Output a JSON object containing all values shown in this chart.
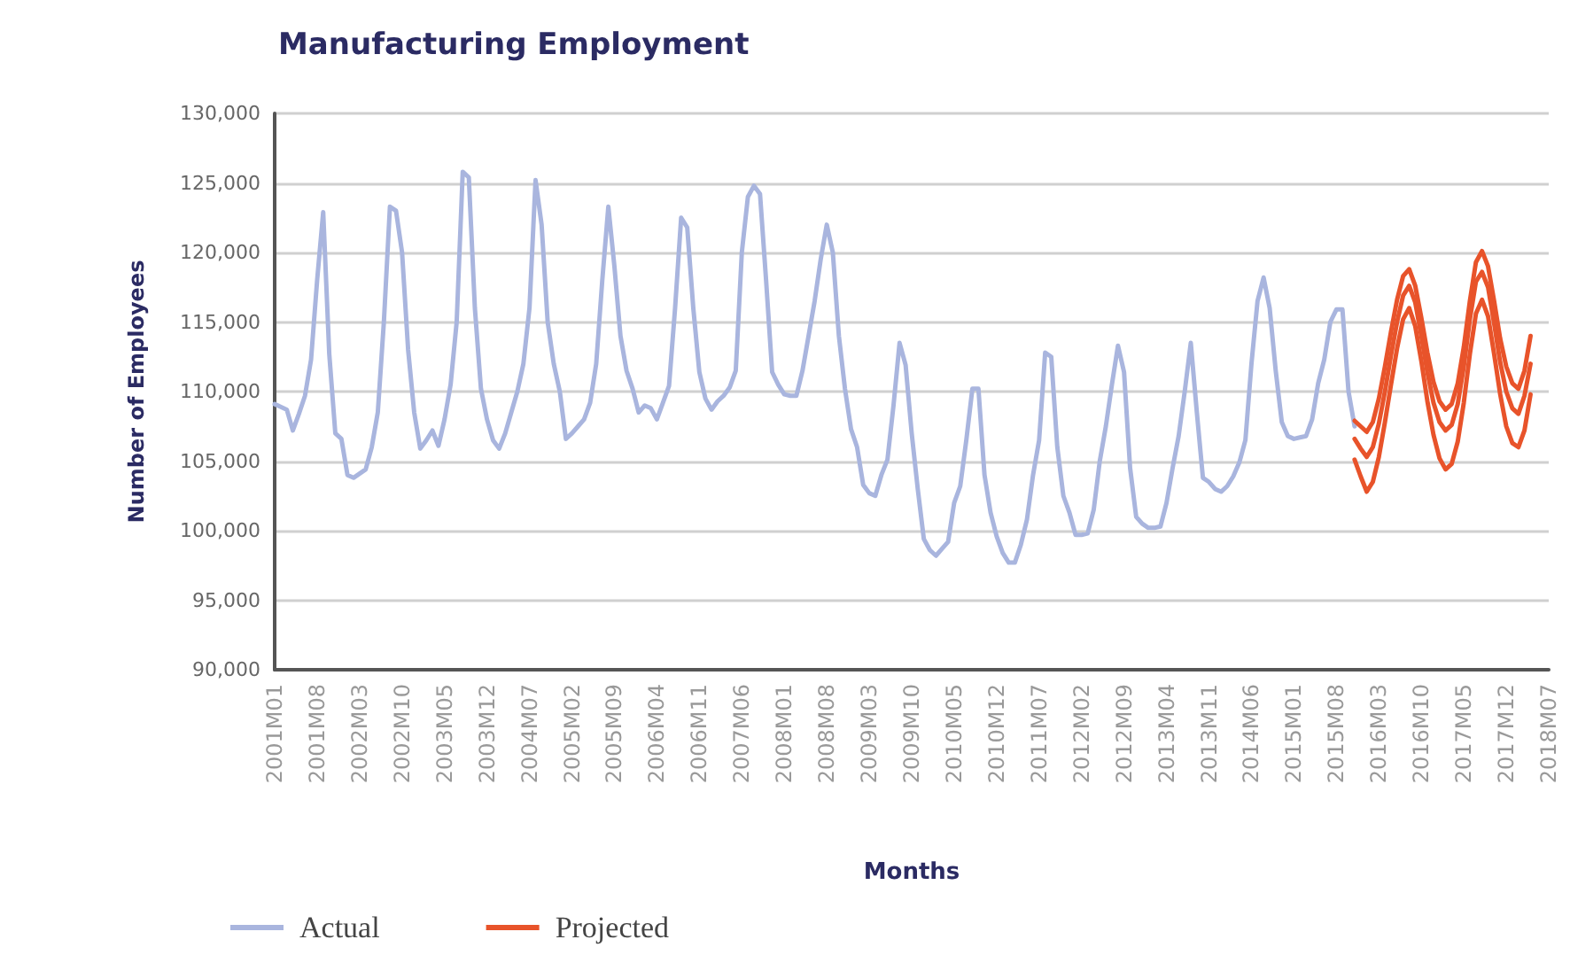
{
  "chart_data": {
    "type": "line",
    "title": "Manufacturing Employment",
    "xlabel": "Months",
    "ylabel": "Number of Employees",
    "categories": [
      "2001M01",
      null,
      null,
      null,
      null,
      null,
      null,
      "2001M08",
      null,
      null,
      null,
      null,
      null,
      null,
      "2002M03",
      null,
      null,
      null,
      null,
      null,
      null,
      "2002M10",
      null,
      null,
      null,
      null,
      null,
      null,
      "2003M05",
      null,
      null,
      null,
      null,
      null,
      null,
      "2003M12",
      null,
      null,
      null,
      null,
      null,
      null,
      "2004M07",
      null,
      null,
      null,
      null,
      null,
      null,
      "2005M02",
      null,
      null,
      null,
      null,
      null,
      null,
      "2005M09",
      null,
      null,
      null,
      null,
      null,
      null,
      "2006M04",
      null,
      null,
      null,
      null,
      null,
      null,
      "2006M11",
      null,
      null,
      null,
      null,
      null,
      null,
      "2007M06",
      null,
      null,
      null,
      null,
      null,
      null,
      "2008M01",
      null,
      null,
      null,
      null,
      null,
      null,
      "2008M08",
      null,
      null,
      null,
      null,
      null,
      null,
      "2009M03",
      null,
      null,
      null,
      null,
      null,
      null,
      "2009M10",
      null,
      null,
      null,
      null,
      null,
      null,
      "2010M05",
      null,
      null,
      null,
      null,
      null,
      null,
      "2010M12",
      null,
      null,
      null,
      null,
      null,
      null,
      "2011M07",
      null,
      null,
      null,
      null,
      null,
      null,
      "2012M02",
      null,
      null,
      null,
      null,
      null,
      null,
      "2012M09",
      null,
      null,
      null,
      null,
      null,
      null,
      "2013M04",
      null,
      null,
      null,
      null,
      null,
      null,
      "2013M11",
      null,
      null,
      null,
      null,
      null,
      null,
      "2014M06",
      null,
      null,
      null,
      null,
      null,
      null,
      "2015M01",
      null,
      null,
      null,
      null,
      null,
      null,
      "2015M08",
      null,
      null,
      null,
      null,
      null,
      null,
      "2016M03",
      null,
      null,
      null,
      null,
      null,
      null,
      "2016M10",
      null,
      null,
      null,
      null,
      null,
      null,
      "2017M05",
      null,
      null,
      null,
      null,
      null,
      null,
      "2017M12",
      null,
      null,
      null,
      null,
      null,
      null,
      "2018M07"
    ],
    "series": [
      {
        "name": "Actual",
        "color": "#a9b5de",
        "values": [
          109100,
          108900,
          108700,
          107200,
          108400,
          109700,
          112300,
          118000,
          122900,
          112700,
          107000,
          106600,
          104000,
          103800,
          104100,
          104400,
          106000,
          108500,
          115000,
          123300,
          123000,
          120000,
          113000,
          108500,
          105900,
          106500,
          107200,
          106100,
          108000,
          110500,
          115000,
          125800,
          125400,
          116000,
          110200,
          108000,
          106500,
          105900,
          107000,
          108500,
          110000,
          112000,
          116000,
          125200,
          122000,
          115000,
          112000,
          110000,
          106600,
          107000,
          107500,
          108000,
          109200,
          112000,
          118000,
          123300,
          119000,
          114000,
          111500,
          110200,
          108500,
          109000,
          108800,
          108000,
          109200,
          110400,
          116000,
          122500,
          121800,
          116000,
          111400,
          109500,
          108700,
          109300,
          109700,
          110300,
          111500,
          120000,
          124000,
          124800,
          124200,
          118000,
          111400,
          110500,
          109800,
          109700,
          109700,
          111500,
          114000,
          116500,
          119500,
          122000,
          120000,
          114000,
          110200,
          107300,
          106000,
          103300,
          102700,
          102500,
          104000,
          105100,
          109000,
          113500,
          111900,
          107000,
          103000,
          99400,
          98600,
          98200,
          98700,
          99200,
          102000,
          103200,
          106500,
          110200,
          110200,
          104000,
          101300,
          99600,
          98400,
          97700,
          97700,
          99000,
          100800,
          104000,
          106500,
          112800,
          112500,
          106000,
          102500,
          101300,
          99700,
          99700,
          99800,
          101500,
          105000,
          107500,
          110500,
          113300,
          111400,
          104500,
          101000,
          100500,
          100200,
          100200,
          100300,
          102000,
          104500,
          106800,
          110000,
          113500,
          108500,
          103800,
          103500,
          103000,
          102800,
          103200,
          103900,
          104900,
          106500,
          112000,
          116500,
          118200,
          116000,
          111500,
          107800,
          106800,
          106600,
          106700,
          106800,
          108000,
          110600,
          112300,
          115000,
          115900,
          115900,
          110000,
          107500,
          null,
          null,
          null,
          null,
          null,
          null,
          null,
          null,
          null,
          null,
          null,
          null,
          null,
          null,
          null,
          null,
          null,
          null,
          null,
          null,
          null,
          null,
          null,
          null,
          null,
          null,
          null,
          null,
          null,
          null,
          null,
          null
        ]
      },
      {
        "name": "Projected",
        "color": "#e8532a",
        "values": [
          null,
          null,
          null,
          null,
          null,
          null,
          null,
          null,
          null,
          null,
          null,
          null,
          null,
          null,
          null,
          null,
          null,
          null,
          null,
          null,
          null,
          null,
          null,
          null,
          null,
          null,
          null,
          null,
          null,
          null,
          null,
          null,
          null,
          null,
          null,
          null,
          null,
          null,
          null,
          null,
          null,
          null,
          null,
          null,
          null,
          null,
          null,
          null,
          null,
          null,
          null,
          null,
          null,
          null,
          null,
          null,
          null,
          null,
          null,
          null,
          null,
          null,
          null,
          null,
          null,
          null,
          null,
          null,
          null,
          null,
          null,
          null,
          null,
          null,
          null,
          null,
          null,
          null,
          null,
          null,
          null,
          null,
          null,
          null,
          null,
          null,
          null,
          null,
          null,
          null,
          null,
          null,
          null,
          null,
          null,
          null,
          null,
          null,
          null,
          null,
          null,
          null,
          null,
          null,
          null,
          null,
          null,
          null,
          null,
          null,
          null,
          null,
          null,
          null,
          null,
          null,
          null,
          null,
          null,
          null,
          null,
          null,
          null,
          null,
          null,
          null,
          null,
          null,
          null,
          null,
          null,
          null,
          null,
          null,
          null,
          null,
          null,
          null,
          null,
          null,
          null,
          null,
          null,
          null,
          null,
          null,
          null,
          null,
          null,
          null,
          null,
          null,
          null,
          null,
          null,
          null,
          null,
          null,
          null,
          null,
          null,
          null,
          null,
          null,
          null,
          null,
          null,
          null,
          null,
          null,
          null,
          null,
          null,
          null,
          null,
          null,
          null,
          null,
          107900,
          107500,
          107100,
          107800,
          109500,
          111800,
          114300,
          116600,
          118300,
          118800,
          117600,
          115300,
          112800,
          110700,
          109300,
          108700,
          109100,
          110600,
          113200,
          116500,
          119300,
          120100,
          119000,
          116500,
          113800,
          111800,
          110600,
          110200,
          111500,
          114000,
          null,
          null,
          null
        ]
      },
      {
        "color": "#e8532a",
        "values": [
          null,
          null,
          null,
          null,
          null,
          null,
          null,
          null,
          null,
          null,
          null,
          null,
          null,
          null,
          null,
          null,
          null,
          null,
          null,
          null,
          null,
          null,
          null,
          null,
          null,
          null,
          null,
          null,
          null,
          null,
          null,
          null,
          null,
          null,
          null,
          null,
          null,
          null,
          null,
          null,
          null,
          null,
          null,
          null,
          null,
          null,
          null,
          null,
          null,
          null,
          null,
          null,
          null,
          null,
          null,
          null,
          null,
          null,
          null,
          null,
          null,
          null,
          null,
          null,
          null,
          null,
          null,
          null,
          null,
          null,
          null,
          null,
          null,
          null,
          null,
          null,
          null,
          null,
          null,
          null,
          null,
          null,
          null,
          null,
          null,
          null,
          null,
          null,
          null,
          null,
          null,
          null,
          null,
          null,
          null,
          null,
          null,
          null,
          null,
          null,
          null,
          null,
          null,
          null,
          null,
          null,
          null,
          null,
          null,
          null,
          null,
          null,
          null,
          null,
          null,
          null,
          null,
          null,
          null,
          null,
          null,
          null,
          null,
          null,
          null,
          null,
          null,
          null,
          null,
          null,
          null,
          null,
          null,
          null,
          null,
          null,
          null,
          null,
          null,
          null,
          null,
          null,
          null,
          null,
          null,
          null,
          null,
          null,
          null,
          null,
          null,
          null,
          null,
          null,
          null,
          null,
          null,
          null,
          null,
          null,
          null,
          null,
          null,
          null,
          null,
          null,
          null,
          null,
          null,
          null,
          null,
          null,
          null,
          null,
          null,
          null,
          null,
          null,
          106600,
          105900,
          105300,
          106000,
          107700,
          110000,
          112600,
          115000,
          116900,
          117600,
          116400,
          114000,
          111400,
          109200,
          107800,
          107200,
          107600,
          109100,
          111800,
          115200,
          117900,
          118600,
          117500,
          114900,
          112100,
          110000,
          108800,
          108400,
          109700,
          112000,
          null,
          null,
          null
        ]
      },
      {
        "color": "#e8532a",
        "values": [
          null,
          null,
          null,
          null,
          null,
          null,
          null,
          null,
          null,
          null,
          null,
          null,
          null,
          null,
          null,
          null,
          null,
          null,
          null,
          null,
          null,
          null,
          null,
          null,
          null,
          null,
          null,
          null,
          null,
          null,
          null,
          null,
          null,
          null,
          null,
          null,
          null,
          null,
          null,
          null,
          null,
          null,
          null,
          null,
          null,
          null,
          null,
          null,
          null,
          null,
          null,
          null,
          null,
          null,
          null,
          null,
          null,
          null,
          null,
          null,
          null,
          null,
          null,
          null,
          null,
          null,
          null,
          null,
          null,
          null,
          null,
          null,
          null,
          null,
          null,
          null,
          null,
          null,
          null,
          null,
          null,
          null,
          null,
          null,
          null,
          null,
          null,
          null,
          null,
          null,
          null,
          null,
          null,
          null,
          null,
          null,
          null,
          null,
          null,
          null,
          null,
          null,
          null,
          null,
          null,
          null,
          null,
          null,
          null,
          null,
          null,
          null,
          null,
          null,
          null,
          null,
          null,
          null,
          null,
          null,
          null,
          null,
          null,
          null,
          null,
          null,
          null,
          null,
          null,
          null,
          null,
          null,
          null,
          null,
          null,
          null,
          null,
          null,
          null,
          null,
          null,
          null,
          null,
          null,
          null,
          null,
          null,
          null,
          null,
          null,
          null,
          null,
          null,
          null,
          null,
          null,
          null,
          null,
          null,
          null,
          null,
          null,
          null,
          null,
          null,
          null,
          null,
          null,
          null,
          null,
          null,
          null,
          null,
          null,
          null,
          null,
          null,
          null,
          105100,
          103900,
          102800,
          103500,
          105300,
          107800,
          110500,
          113100,
          115200,
          116000,
          114700,
          112200,
          109300,
          106900,
          105200,
          104400,
          104800,
          106400,
          109200,
          112700,
          115600,
          116600,
          115400,
          112700,
          109800,
          107500,
          106300,
          106000,
          107200,
          109800,
          null,
          null,
          null
        ]
      }
    ],
    "ylim": [
      90000,
      130000
    ],
    "yticks": [
      {
        "value": 90000,
        "label": "90,000"
      },
      {
        "value": 95000,
        "label": "95,000"
      },
      {
        "value": 100000,
        "label": "100,000"
      },
      {
        "value": 105000,
        "label": "105,000"
      },
      {
        "value": 110000,
        "label": "110,000"
      },
      {
        "value": 115000,
        "label": "115,000"
      },
      {
        "value": 120000,
        "label": "120,000"
      },
      {
        "value": 125000,
        "label": "125,000"
      },
      {
        "value": 130000,
        "label": "130,000"
      }
    ],
    "grid": "y",
    "legend": "bottom left",
    "marker": "none",
    "line_style": "solid"
  }
}
